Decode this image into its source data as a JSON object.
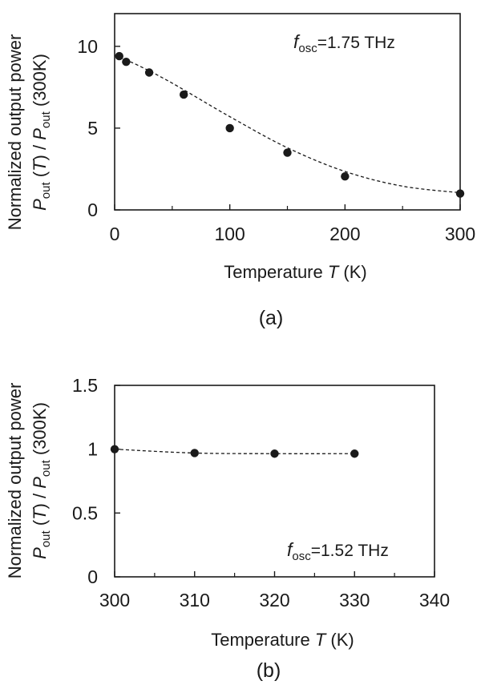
{
  "chart_data": [
    {
      "type": "scatter",
      "panel_label": "(a)",
      "xlabel": {
        "prefix": "Temperature ",
        "symbol": "T",
        "unit": " (K)"
      },
      "ylabel": {
        "line1": "Normalized output power",
        "line2": {
          "p1": "P",
          "sub1": "out",
          "mid": " (",
          "t": "T",
          "mid2": ") / ",
          "p2": "P",
          "sub2": "out",
          "end": " (300K)"
        }
      },
      "annotation": {
        "f": "f",
        "sub": "osc",
        "value": "=1.75 THz"
      },
      "xlim": [
        0,
        300
      ],
      "ylim": [
        0,
        12
      ],
      "xticks": [
        0,
        100,
        200,
        300
      ],
      "xminor": [
        50,
        150,
        250
      ],
      "yticks": [
        0,
        5,
        10
      ],
      "grid": false,
      "legend": "none",
      "series": [
        {
          "x": [
            4,
            10,
            30,
            60,
            100,
            150,
            200,
            300
          ],
          "y": [
            9.4,
            9.05,
            8.4,
            7.05,
            5.0,
            3.5,
            2.05,
            1.0
          ]
        }
      ],
      "trend": {
        "style": "dashed",
        "x": [
          0,
          20,
          50,
          100,
          150,
          200,
          250,
          300
        ],
        "y": [
          9.45,
          8.85,
          7.75,
          5.7,
          3.8,
          2.35,
          1.45,
          1.05
        ]
      }
    },
    {
      "type": "line",
      "panel_label": "(b)",
      "xlabel": {
        "prefix": "Temperature ",
        "symbol": "T",
        "unit": " (K)"
      },
      "ylabel": {
        "line1": "Normalized output power",
        "line2": {
          "p1": "P",
          "sub1": "out",
          "mid": " (",
          "t": "T",
          "mid2": ") / ",
          "p2": "P",
          "sub2": "out",
          "end": " (300K)"
        }
      },
      "annotation": {
        "f": "f",
        "sub": "osc",
        "value": "=1.52 THz"
      },
      "xlim": [
        300,
        340
      ],
      "ylim": [
        0,
        1.5
      ],
      "xticks": [
        300,
        310,
        320,
        330,
        340
      ],
      "xminor": [
        305,
        315,
        325,
        335
      ],
      "yticks": [
        0,
        0.5,
        1,
        1.5
      ],
      "ytick_labels": [
        "0",
        "0.5",
        "1",
        "1.5"
      ],
      "grid": false,
      "legend": "none",
      "series": [
        {
          "x": [
            300,
            310,
            320,
            330
          ],
          "y": [
            1.0,
            0.97,
            0.965,
            0.965
          ]
        }
      ]
    }
  ]
}
